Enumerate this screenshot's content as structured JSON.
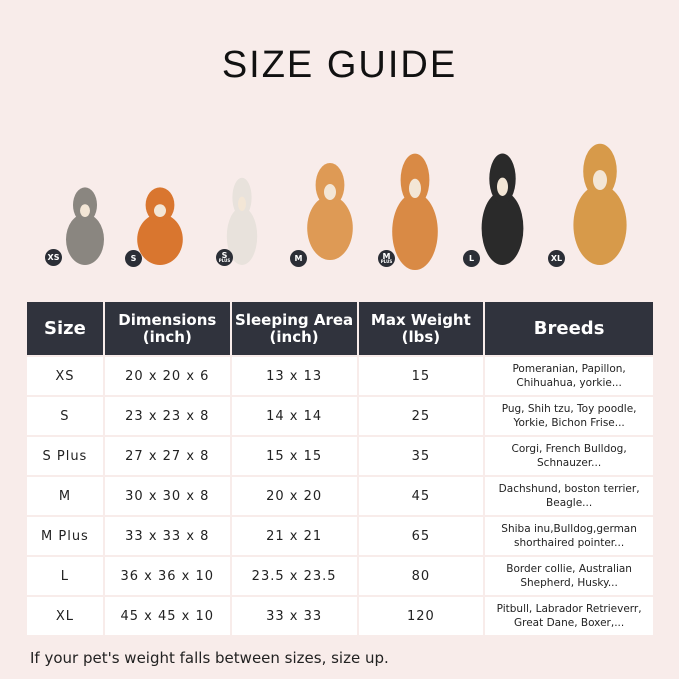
{
  "title": "SIZE GUIDE",
  "pets": [
    {
      "badge": "XS",
      "sub": "",
      "color": "#8a8680"
    },
    {
      "badge": "S",
      "sub": "",
      "color": "#d9762f"
    },
    {
      "badge": "S",
      "sub": "PLUS",
      "color": "#e8e2dc"
    },
    {
      "badge": "M",
      "sub": "",
      "color": "#de9a55"
    },
    {
      "badge": "M",
      "sub": "PLUS",
      "color": "#d98a45"
    },
    {
      "badge": "L",
      "sub": "",
      "color": "#2a2a2a"
    },
    {
      "badge": "XL",
      "sub": "",
      "color": "#d79a4a"
    }
  ],
  "table": {
    "headers": [
      {
        "line1": "Size",
        "line2": ""
      },
      {
        "line1": "Dimensions",
        "line2": "(inch)"
      },
      {
        "line1": "Sleeping Area",
        "line2": "(inch)"
      },
      {
        "line1": "Max Weight",
        "line2": "(lbs)"
      },
      {
        "line1": "Breeds",
        "line2": ""
      }
    ],
    "rows": [
      [
        "XS",
        "20 x 20 x 6",
        "13 x 13",
        "15",
        "Pomeranian, Papillon,",
        "Chihuahua, yorkie..."
      ],
      [
        "S",
        "23 x 23 x 8",
        "14 x 14",
        "25",
        "Pug, Shih tzu, Toy poodle,",
        "Yorkie, Bichon Frise..."
      ],
      [
        "S Plus",
        "27 x 27 x 8",
        "15 x 15",
        "35",
        "Corgi, French Bulldog,",
        "Schnauzer..."
      ],
      [
        "M",
        "30 x 30 x 8",
        "20 x 20",
        "45",
        "Dachshund, boston terrier,",
        "Beagle..."
      ],
      [
        "M Plus",
        "33 x 33 x 8",
        "21 x 21",
        "65",
        "Shiba inu,Bulldog,german",
        "shorthaired pointer..."
      ],
      [
        "L",
        "36 x 36 x 10",
        "23.5 x 23.5",
        "80",
        "Border collie, Australian",
        "Shepherd, Husky..."
      ],
      [
        "XL",
        "45 x 45 x 10",
        "33 x 33",
        "120",
        "Pitbull, Labrador Retrieverr,",
        "Great Dane, Boxer,..."
      ]
    ]
  },
  "note": "If your pet's weight falls between sizes, size up."
}
